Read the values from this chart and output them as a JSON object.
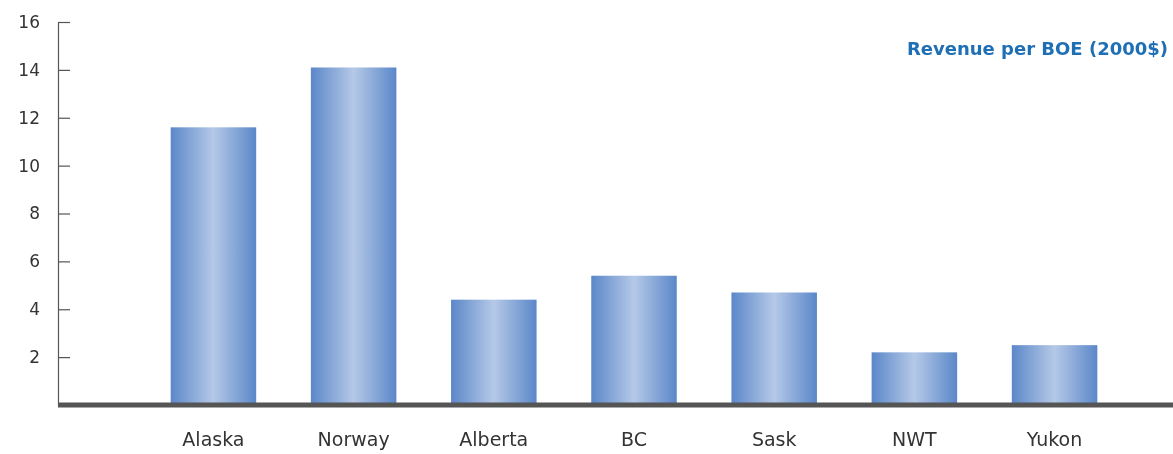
{
  "chart_data": {
    "type": "bar",
    "title": "Revenue per BOE (2000$)",
    "categories": [
      "Alaska",
      "Norway",
      "Alberta",
      "BC",
      "Sask",
      "NWT",
      "Yukon"
    ],
    "values": [
      11.6,
      14.1,
      4.4,
      5.4,
      4.7,
      2.2,
      2.5
    ],
    "color": "#5b87c9",
    "ylim": [
      0,
      16
    ],
    "yticks": [
      2,
      4,
      6,
      8,
      10,
      12,
      14,
      16
    ],
    "grid": false
  }
}
